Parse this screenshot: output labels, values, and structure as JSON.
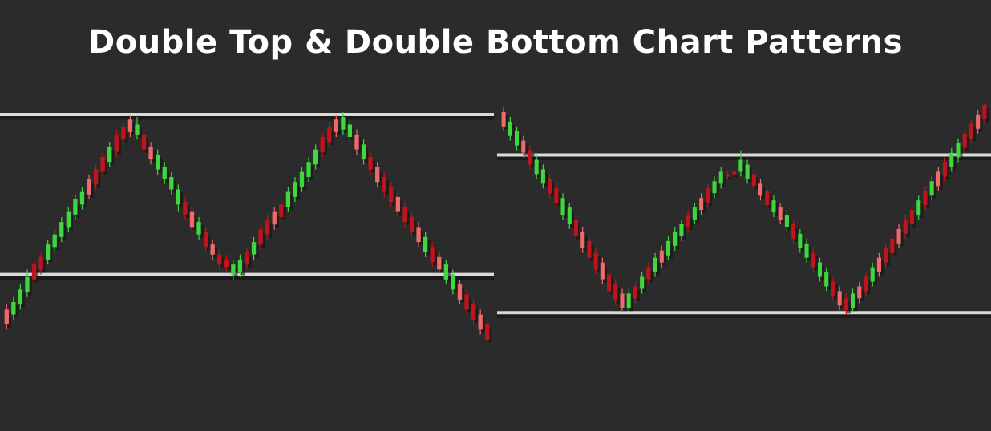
{
  "title": "Double Top & Double Bottom Chart Patterns",
  "colors": {
    "background": "#2b2b2b",
    "bullish": "#3fd63f",
    "bearish_dark": "#c0141c",
    "bearish_light": "#f06a6a",
    "level_line": "#d9d9d9",
    "shadow": "#141414"
  },
  "chart_data": [
    {
      "type": "candlestick",
      "title": "",
      "pattern": "double top",
      "xlabel": "",
      "ylabel": "",
      "axes_shown": false,
      "grid": false,
      "legend": "none",
      "ylim": [
        0,
        100
      ],
      "resistance_level": 92,
      "support_level": 28,
      "candles": [
        {
          "o": 8,
          "c": 14,
          "h": 16,
          "l": 6,
          "bull": false
        },
        {
          "o": 12,
          "c": 17,
          "h": 19,
          "l": 10,
          "bull": true
        },
        {
          "o": 16,
          "c": 22,
          "h": 24,
          "l": 14,
          "bull": true
        },
        {
          "o": 21,
          "c": 27,
          "h": 30,
          "l": 19,
          "bull": true
        },
        {
          "o": 26,
          "c": 32,
          "h": 34,
          "l": 24,
          "bull": false
        },
        {
          "o": 30,
          "c": 35,
          "h": 37,
          "l": 28,
          "bull": false
        },
        {
          "o": 34,
          "c": 40,
          "h": 42,
          "l": 32,
          "bull": true
        },
        {
          "o": 39,
          "c": 44,
          "h": 46,
          "l": 37,
          "bull": true
        },
        {
          "o": 43,
          "c": 49,
          "h": 51,
          "l": 41,
          "bull": true
        },
        {
          "o": 47,
          "c": 53,
          "h": 55,
          "l": 45,
          "bull": true
        },
        {
          "o": 52,
          "c": 58,
          "h": 60,
          "l": 50,
          "bull": true
        },
        {
          "o": 56,
          "c": 61,
          "h": 63,
          "l": 54,
          "bull": true
        },
        {
          "o": 60,
          "c": 66,
          "h": 68,
          "l": 58,
          "bull": false
        },
        {
          "o": 64,
          "c": 70,
          "h": 72,
          "l": 62,
          "bull": false
        },
        {
          "o": 69,
          "c": 75,
          "h": 77,
          "l": 67,
          "bull": false
        },
        {
          "o": 73,
          "c": 79,
          "h": 81,
          "l": 71,
          "bull": true
        },
        {
          "o": 77,
          "c": 84,
          "h": 86,
          "l": 75,
          "bull": false
        },
        {
          "o": 82,
          "c": 87,
          "h": 89,
          "l": 80,
          "bull": false
        },
        {
          "o": 85,
          "c": 90,
          "h": 92,
          "l": 83,
          "bull": false
        },
        {
          "o": 88,
          "c": 84,
          "h": 91,
          "l": 82,
          "bull": true
        },
        {
          "o": 84,
          "c": 78,
          "h": 86,
          "l": 76,
          "bull": false
        },
        {
          "o": 79,
          "c": 74,
          "h": 81,
          "l": 72,
          "bull": false
        },
        {
          "o": 76,
          "c": 70,
          "h": 78,
          "l": 68,
          "bull": true
        },
        {
          "o": 71,
          "c": 66,
          "h": 73,
          "l": 64,
          "bull": true
        },
        {
          "o": 67,
          "c": 62,
          "h": 69,
          "l": 60,
          "bull": true
        },
        {
          "o": 62,
          "c": 56,
          "h": 64,
          "l": 53,
          "bull": true
        },
        {
          "o": 57,
          "c": 52,
          "h": 59,
          "l": 50,
          "bull": false
        },
        {
          "o": 53,
          "c": 47,
          "h": 55,
          "l": 45,
          "bull": false
        },
        {
          "o": 49,
          "c": 44,
          "h": 51,
          "l": 42,
          "bull": true
        },
        {
          "o": 45,
          "c": 39,
          "h": 47,
          "l": 37,
          "bull": false
        },
        {
          "o": 40,
          "c": 36,
          "h": 42,
          "l": 34,
          "bull": false
        },
        {
          "o": 36,
          "c": 32,
          "h": 38,
          "l": 30,
          "bull": false
        },
        {
          "o": 34,
          "c": 31,
          "h": 36,
          "l": 29,
          "bull": false
        },
        {
          "o": 32,
          "c": 28,
          "h": 34,
          "l": 26,
          "bull": true
        },
        {
          "o": 29,
          "c": 34,
          "h": 36,
          "l": 27,
          "bull": true
        },
        {
          "o": 32,
          "c": 37,
          "h": 39,
          "l": 30,
          "bull": false
        },
        {
          "o": 36,
          "c": 41,
          "h": 43,
          "l": 34,
          "bull": true
        },
        {
          "o": 40,
          "c": 46,
          "h": 48,
          "l": 38,
          "bull": false
        },
        {
          "o": 44,
          "c": 50,
          "h": 52,
          "l": 42,
          "bull": false
        },
        {
          "o": 48,
          "c": 53,
          "h": 55,
          "l": 46,
          "bull": false
        },
        {
          "o": 51,
          "c": 56,
          "h": 58,
          "l": 49,
          "bull": false
        },
        {
          "o": 55,
          "c": 61,
          "h": 63,
          "l": 53,
          "bull": true
        },
        {
          "o": 59,
          "c": 65,
          "h": 67,
          "l": 57,
          "bull": true
        },
        {
          "o": 63,
          "c": 69,
          "h": 71,
          "l": 61,
          "bull": true
        },
        {
          "o": 67,
          "c": 73,
          "h": 75,
          "l": 65,
          "bull": true
        },
        {
          "o": 72,
          "c": 78,
          "h": 80,
          "l": 70,
          "bull": true
        },
        {
          "o": 77,
          "c": 83,
          "h": 85,
          "l": 75,
          "bull": false
        },
        {
          "o": 81,
          "c": 87,
          "h": 89,
          "l": 79,
          "bull": false
        },
        {
          "o": 85,
          "c": 90,
          "h": 92,
          "l": 83,
          "bull": false
        },
        {
          "o": 86,
          "c": 91,
          "h": 93,
          "l": 84,
          "bull": true
        },
        {
          "o": 88,
          "c": 83,
          "h": 90,
          "l": 81,
          "bull": true
        },
        {
          "o": 84,
          "c": 78,
          "h": 86,
          "l": 76,
          "bull": false
        },
        {
          "o": 80,
          "c": 74,
          "h": 82,
          "l": 72,
          "bull": true
        },
        {
          "o": 75,
          "c": 70,
          "h": 77,
          "l": 68,
          "bull": false
        },
        {
          "o": 71,
          "c": 65,
          "h": 73,
          "l": 63,
          "bull": false
        },
        {
          "o": 67,
          "c": 61,
          "h": 69,
          "l": 59,
          "bull": false
        },
        {
          "o": 63,
          "c": 57,
          "h": 65,
          "l": 55,
          "bull": false
        },
        {
          "o": 59,
          "c": 53,
          "h": 61,
          "l": 51,
          "bull": false
        },
        {
          "o": 55,
          "c": 49,
          "h": 57,
          "l": 47,
          "bull": false
        },
        {
          "o": 51,
          "c": 45,
          "h": 53,
          "l": 43,
          "bull": false
        },
        {
          "o": 47,
          "c": 41,
          "h": 49,
          "l": 39,
          "bull": false
        },
        {
          "o": 43,
          "c": 37,
          "h": 45,
          "l": 35,
          "bull": true
        },
        {
          "o": 39,
          "c": 33,
          "h": 41,
          "l": 31,
          "bull": false
        },
        {
          "o": 35,
          "c": 30,
          "h": 37,
          "l": 28,
          "bull": false
        },
        {
          "o": 32,
          "c": 26,
          "h": 34,
          "l": 24,
          "bull": true
        },
        {
          "o": 28,
          "c": 22,
          "h": 30,
          "l": 20,
          "bull": true
        },
        {
          "o": 24,
          "c": 18,
          "h": 26,
          "l": 16,
          "bull": false
        },
        {
          "o": 20,
          "c": 14,
          "h": 22,
          "l": 12,
          "bull": false
        },
        {
          "o": 16,
          "c": 10,
          "h": 18,
          "l": 8,
          "bull": false
        },
        {
          "o": 12,
          "c": 6,
          "h": 14,
          "l": 4,
          "bull": false
        },
        {
          "o": 8,
          "c": 2,
          "h": 10,
          "l": 0,
          "bull": false
        }
      ]
    },
    {
      "type": "candlestick",
      "title": "",
      "pattern": "double bottom",
      "xlabel": "",
      "ylabel": "",
      "axes_shown": false,
      "grid": false,
      "legend": "none",
      "ylim": [
        0,
        100
      ],
      "resistance_level": 78,
      "support_level": 12,
      "candles": [
        {
          "o": 90,
          "c": 96,
          "h": 98,
          "l": 88,
          "bull": false
        },
        {
          "o": 92,
          "c": 86,
          "h": 94,
          "l": 84,
          "bull": true
        },
        {
          "o": 88,
          "c": 82,
          "h": 90,
          "l": 80,
          "bull": true
        },
        {
          "o": 84,
          "c": 79,
          "h": 86,
          "l": 77,
          "bull": false
        },
        {
          "o": 80,
          "c": 74,
          "h": 82,
          "l": 72,
          "bull": false
        },
        {
          "o": 76,
          "c": 70,
          "h": 78,
          "l": 68,
          "bull": true
        },
        {
          "o": 72,
          "c": 66,
          "h": 74,
          "l": 64,
          "bull": true
        },
        {
          "o": 68,
          "c": 62,
          "h": 70,
          "l": 60,
          "bull": false
        },
        {
          "o": 64,
          "c": 58,
          "h": 66,
          "l": 56,
          "bull": false
        },
        {
          "o": 60,
          "c": 53,
          "h": 62,
          "l": 51,
          "bull": true
        },
        {
          "o": 56,
          "c": 49,
          "h": 58,
          "l": 47,
          "bull": true
        },
        {
          "o": 51,
          "c": 44,
          "h": 53,
          "l": 42,
          "bull": false
        },
        {
          "o": 46,
          "c": 39,
          "h": 48,
          "l": 37,
          "bull": false
        },
        {
          "o": 42,
          "c": 35,
          "h": 44,
          "l": 33,
          "bull": false
        },
        {
          "o": 37,
          "c": 30,
          "h": 39,
          "l": 28,
          "bull": false
        },
        {
          "o": 33,
          "c": 26,
          "h": 35,
          "l": 24,
          "bull": false
        },
        {
          "o": 28,
          "c": 21,
          "h": 30,
          "l": 19,
          "bull": false
        },
        {
          "o": 24,
          "c": 17,
          "h": 26,
          "l": 15,
          "bull": false
        },
        {
          "o": 20,
          "c": 14,
          "h": 22,
          "l": 12,
          "bull": false
        },
        {
          "o": 14,
          "c": 20,
          "h": 22,
          "l": 12,
          "bull": true
        },
        {
          "o": 18,
          "c": 23,
          "h": 25,
          "l": 16,
          "bull": false
        },
        {
          "o": 22,
          "c": 27,
          "h": 29,
          "l": 20,
          "bull": true
        },
        {
          "o": 26,
          "c": 31,
          "h": 33,
          "l": 24,
          "bull": false
        },
        {
          "o": 29,
          "c": 35,
          "h": 37,
          "l": 27,
          "bull": true
        },
        {
          "o": 33,
          "c": 38,
          "h": 40,
          "l": 31,
          "bull": false
        },
        {
          "o": 36,
          "c": 42,
          "h": 44,
          "l": 34,
          "bull": true
        },
        {
          "o": 40,
          "c": 46,
          "h": 48,
          "l": 38,
          "bull": true
        },
        {
          "o": 44,
          "c": 49,
          "h": 51,
          "l": 42,
          "bull": true
        },
        {
          "o": 48,
          "c": 53,
          "h": 55,
          "l": 46,
          "bull": false
        },
        {
          "o": 51,
          "c": 56,
          "h": 58,
          "l": 49,
          "bull": true
        },
        {
          "o": 55,
          "c": 60,
          "h": 62,
          "l": 53,
          "bull": false
        },
        {
          "o": 58,
          "c": 64,
          "h": 66,
          "l": 56,
          "bull": false
        },
        {
          "o": 62,
          "c": 67,
          "h": 69,
          "l": 60,
          "bull": true
        },
        {
          "o": 66,
          "c": 71,
          "h": 73,
          "l": 64,
          "bull": true
        },
        {
          "o": 69,
          "c": 70,
          "h": 71,
          "l": 68,
          "bull": false
        },
        {
          "o": 70,
          "c": 71,
          "h": 72,
          "l": 69,
          "bull": false
        },
        {
          "o": 71,
          "c": 76,
          "h": 80,
          "l": 69,
          "bull": true
        },
        {
          "o": 74,
          "c": 68,
          "h": 76,
          "l": 66,
          "bull": true
        },
        {
          "o": 70,
          "c": 65,
          "h": 72,
          "l": 63,
          "bull": false
        },
        {
          "o": 66,
          "c": 61,
          "h": 68,
          "l": 59,
          "bull": false
        },
        {
          "o": 63,
          "c": 57,
          "h": 65,
          "l": 55,
          "bull": false
        },
        {
          "o": 59,
          "c": 54,
          "h": 61,
          "l": 52,
          "bull": true
        },
        {
          "o": 56,
          "c": 51,
          "h": 58,
          "l": 49,
          "bull": false
        },
        {
          "o": 53,
          "c": 48,
          "h": 55,
          "l": 46,
          "bull": true
        },
        {
          "o": 49,
          "c": 43,
          "h": 51,
          "l": 41,
          "bull": false
        },
        {
          "o": 45,
          "c": 39,
          "h": 47,
          "l": 37,
          "bull": true
        },
        {
          "o": 41,
          "c": 35,
          "h": 43,
          "l": 33,
          "bull": true
        },
        {
          "o": 37,
          "c": 31,
          "h": 39,
          "l": 29,
          "bull": false
        },
        {
          "o": 33,
          "c": 27,
          "h": 35,
          "l": 25,
          "bull": true
        },
        {
          "o": 29,
          "c": 23,
          "h": 31,
          "l": 21,
          "bull": true
        },
        {
          "o": 25,
          "c": 19,
          "h": 27,
          "l": 17,
          "bull": false
        },
        {
          "o": 21,
          "c": 15,
          "h": 23,
          "l": 13,
          "bull": false
        },
        {
          "o": 18,
          "c": 13,
          "h": 20,
          "l": 11,
          "bull": false
        },
        {
          "o": 14,
          "c": 20,
          "h": 22,
          "l": 12,
          "bull": true
        },
        {
          "o": 18,
          "c": 23,
          "h": 25,
          "l": 16,
          "bull": false
        },
        {
          "o": 21,
          "c": 27,
          "h": 29,
          "l": 19,
          "bull": false
        },
        {
          "o": 25,
          "c": 31,
          "h": 33,
          "l": 23,
          "bull": true
        },
        {
          "o": 29,
          "c": 35,
          "h": 37,
          "l": 27,
          "bull": false
        },
        {
          "o": 33,
          "c": 39,
          "h": 41,
          "l": 31,
          "bull": false
        },
        {
          "o": 37,
          "c": 43,
          "h": 45,
          "l": 35,
          "bull": false
        },
        {
          "o": 41,
          "c": 47,
          "h": 49,
          "l": 39,
          "bull": false
        },
        {
          "o": 45,
          "c": 51,
          "h": 53,
          "l": 43,
          "bull": false
        },
        {
          "o": 49,
          "c": 55,
          "h": 57,
          "l": 47,
          "bull": false
        },
        {
          "o": 53,
          "c": 59,
          "h": 61,
          "l": 51,
          "bull": true
        },
        {
          "o": 57,
          "c": 63,
          "h": 65,
          "l": 55,
          "bull": false
        },
        {
          "o": 61,
          "c": 67,
          "h": 69,
          "l": 59,
          "bull": true
        },
        {
          "o": 65,
          "c": 71,
          "h": 73,
          "l": 63,
          "bull": false
        },
        {
          "o": 69,
          "c": 75,
          "h": 77,
          "l": 67,
          "bull": false
        },
        {
          "o": 73,
          "c": 79,
          "h": 81,
          "l": 71,
          "bull": true
        },
        {
          "o": 77,
          "c": 83,
          "h": 85,
          "l": 75,
          "bull": true
        },
        {
          "o": 81,
          "c": 87,
          "h": 89,
          "l": 79,
          "bull": false
        },
        {
          "o": 85,
          "c": 91,
          "h": 93,
          "l": 83,
          "bull": false
        },
        {
          "o": 89,
          "c": 95,
          "h": 97,
          "l": 87,
          "bull": false
        },
        {
          "o": 93,
          "c": 99,
          "h": 100,
          "l": 91,
          "bull": false
        }
      ]
    }
  ]
}
